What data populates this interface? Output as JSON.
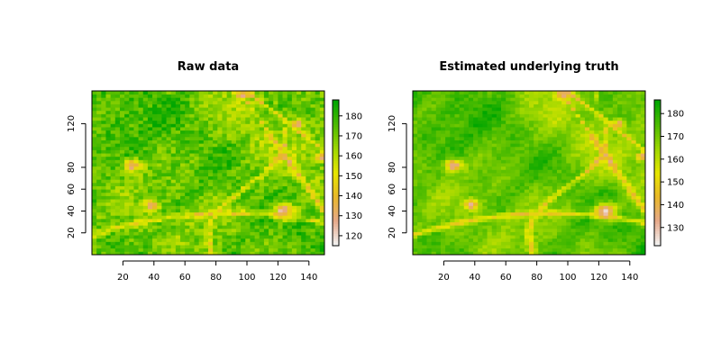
{
  "chart_data": [
    {
      "type": "heatmap",
      "title": "Raw data",
      "xlabel": "",
      "ylabel": "",
      "xlim": [
        0,
        150
      ],
      "ylim": [
        0,
        150
      ],
      "xticks": [
        20,
        40,
        60,
        80,
        100,
        120,
        140
      ],
      "yticks": [
        20,
        40,
        60,
        80,
        120
      ],
      "colorbar": {
        "ticks": [
          120,
          130,
          140,
          150,
          160,
          170,
          180
        ],
        "range": [
          115,
          188
        ],
        "colors": [
          "#f2f2f2",
          "#e6a98a",
          "#e8b829",
          "#e6e600",
          "#9fd700",
          "#4fbc00",
          "#00a600"
        ]
      },
      "patches": [
        {
          "x": 26,
          "y": 82,
          "r": 6,
          "value": 128
        },
        {
          "x": 38,
          "y": 46,
          "r": 5,
          "value": 130
        },
        {
          "x": 124,
          "y": 40,
          "r": 8,
          "value": 126
        },
        {
          "x": 97,
          "y": 147,
          "r": 5,
          "value": 128
        },
        {
          "x": 133,
          "y": 120,
          "r": 4,
          "value": 132
        },
        {
          "x": 148,
          "y": 90,
          "r": 4,
          "value": 130
        }
      ],
      "noise": 1.0
    },
    {
      "type": "heatmap",
      "title": "Estimated underlying truth",
      "xlabel": "",
      "ylabel": "",
      "xlim": [
        0,
        150
      ],
      "ylim": [
        0,
        150
      ],
      "xticks": [
        20,
        40,
        60,
        80,
        100,
        120,
        140
      ],
      "yticks": [
        20,
        40,
        60,
        80,
        120
      ],
      "colorbar": {
        "ticks": [
          130,
          140,
          150,
          160,
          170,
          180
        ],
        "range": [
          122,
          186
        ],
        "colors": [
          "#f2f2f2",
          "#e6a98a",
          "#e8b829",
          "#e6e600",
          "#9fd700",
          "#4fbc00",
          "#00a600"
        ]
      },
      "patches": [
        {
          "x": 26,
          "y": 82,
          "r": 6,
          "value": 130
        },
        {
          "x": 38,
          "y": 46,
          "r": 5,
          "value": 132
        },
        {
          "x": 124,
          "y": 40,
          "r": 8,
          "value": 128
        },
        {
          "x": 97,
          "y": 147,
          "r": 5,
          "value": 130
        },
        {
          "x": 133,
          "y": 120,
          "r": 4,
          "value": 134
        },
        {
          "x": 148,
          "y": 90,
          "r": 4,
          "value": 132
        }
      ],
      "noise": 0.45
    }
  ]
}
